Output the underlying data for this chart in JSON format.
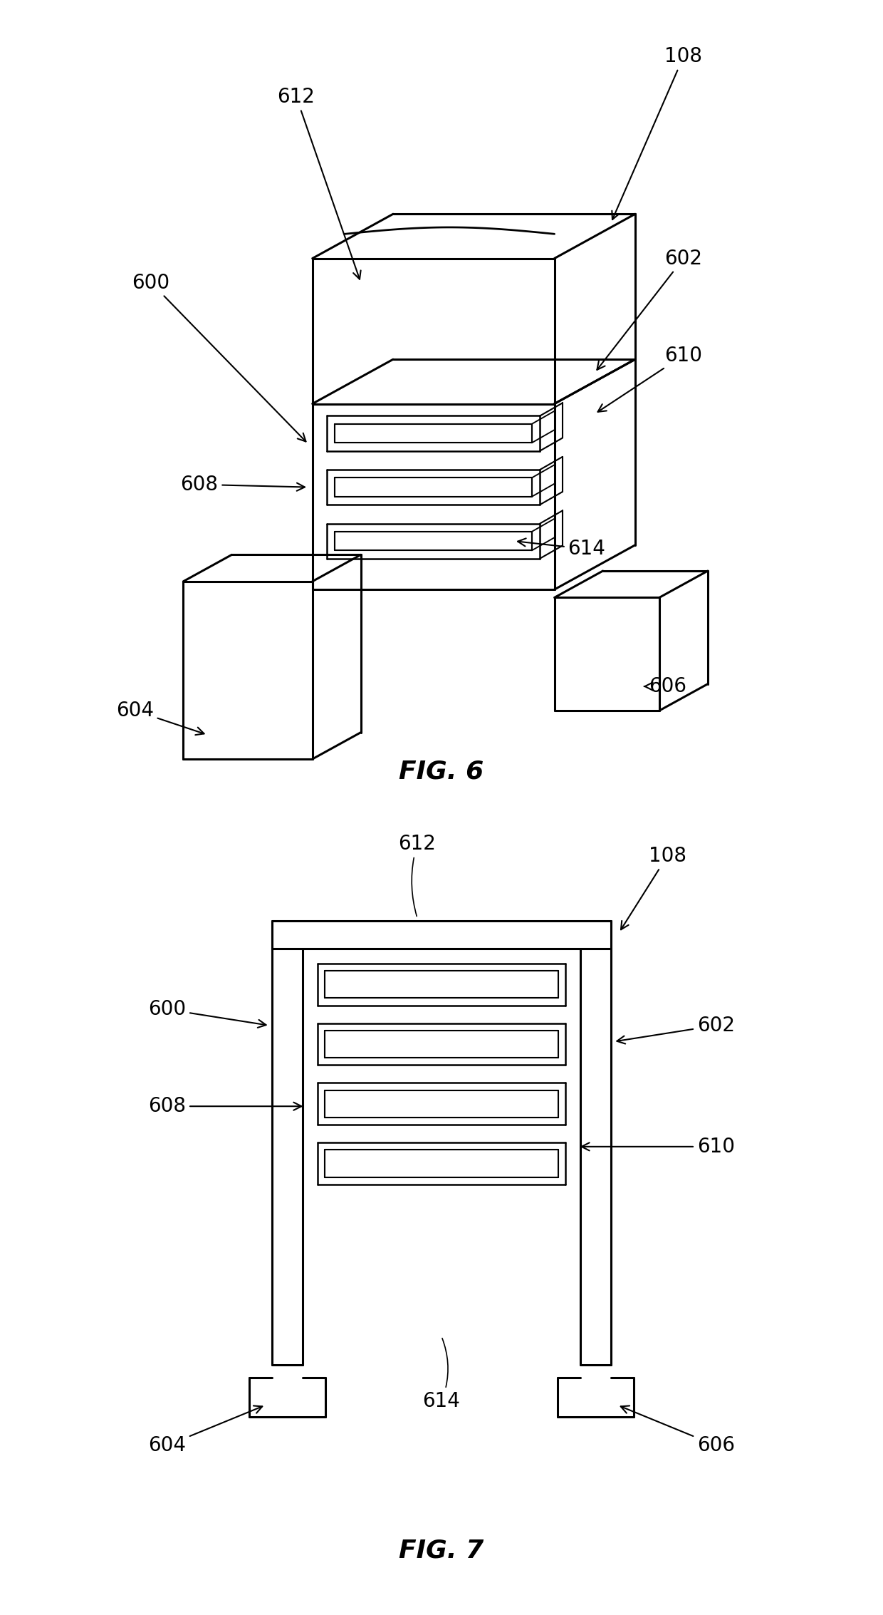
{
  "background_color": "#ffffff",
  "line_color": "#000000",
  "fig6_title": "FIG. 6",
  "fig7_title": "FIG. 7",
  "lw_main": 2.2,
  "lw_slot": 1.8,
  "fontsize_label": 20,
  "fontsize_title": 26
}
